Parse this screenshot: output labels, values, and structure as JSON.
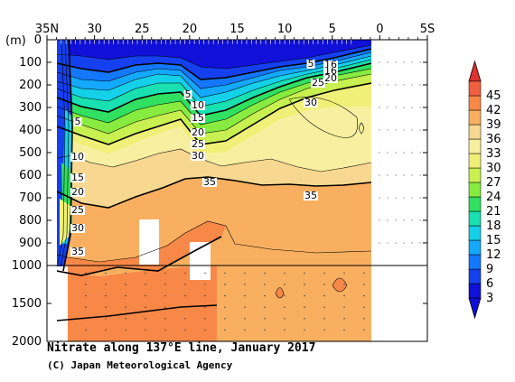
{
  "chart_data": {
    "type": "heatmap",
    "title": "Nitrate along 137°E line, January 2017",
    "credit": "(C) Japan Meteorological Agency",
    "x_axis": {
      "ticks": [
        "35N",
        "30",
        "25",
        "20",
        "15",
        "10",
        "5",
        "0",
        "5S"
      ],
      "tick_values": [
        35,
        30,
        25,
        20,
        15,
        10,
        5,
        0,
        -5
      ],
      "range": [
        35,
        -5
      ]
    },
    "y_axis": {
      "unit": "(m)",
      "ticks": [
        "0",
        "100",
        "200",
        "300",
        "400",
        "500",
        "600",
        "700",
        "800",
        "900",
        "1000",
        "1500",
        "2000"
      ],
      "tick_values": [
        0,
        100,
        200,
        300,
        400,
        500,
        600,
        700,
        800,
        900,
        1000,
        1500,
        2000
      ],
      "range": [
        0,
        2000
      ],
      "scale_break_at": 1000
    },
    "colorbar": {
      "levels": [
        "3",
        "6",
        "9",
        "12",
        "15",
        "18",
        "21",
        "24",
        "27",
        "30",
        "33",
        "36",
        "39",
        "42",
        "45"
      ],
      "colors": [
        "#1010d8",
        "#1440f0",
        "#1478ff",
        "#14a8ff",
        "#14d0e8",
        "#18e0b0",
        "#30e060",
        "#88ec40",
        "#c8f050",
        "#f0f078",
        "#f8f0a0",
        "#f8d890",
        "#f8b060",
        "#f88848",
        "#f06040"
      ],
      "extend": "both"
    },
    "contour_labels": [
      "5",
      "10",
      "15",
      "20",
      "25",
      "30",
      "35",
      "5",
      "10",
      "15",
      "20",
      "25",
      "30",
      "35",
      "5",
      "10",
      "15",
      "20",
      "25",
      "30",
      "35",
      "5",
      "10",
      "15",
      "20",
      "25",
      "30",
      "35"
    ],
    "data_extent_lat": [
      33.5,
      3
    ],
    "grid": false
  }
}
